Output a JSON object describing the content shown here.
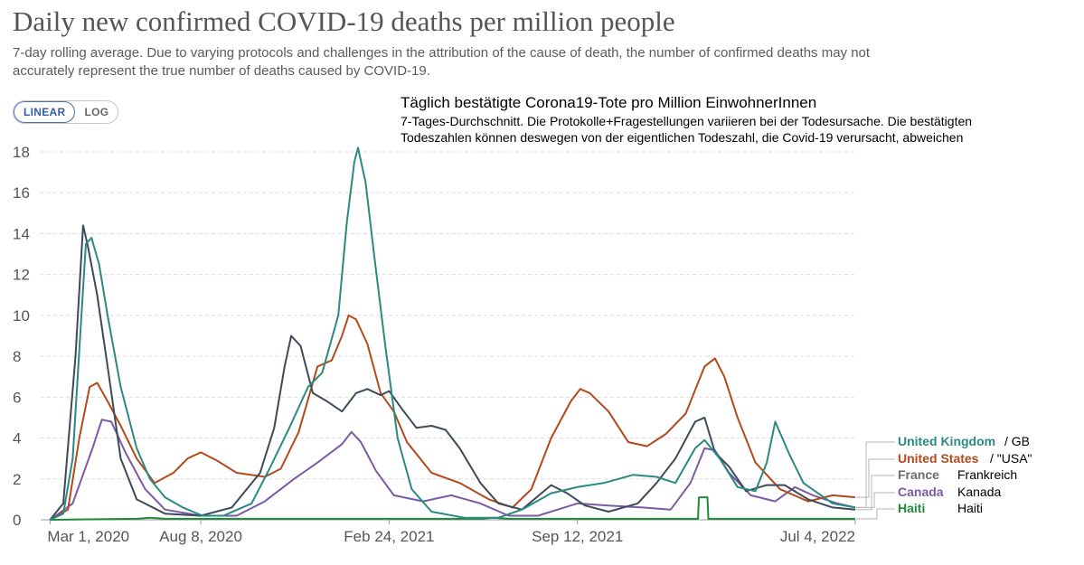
{
  "header": {
    "title": "Daily new confirmed COVID-19 deaths per million people",
    "subtitle": "7-day rolling average. Due to varying protocols and challenges in the attribution of the cause of death, the number of confirmed deaths may not accurately represent the true number of deaths caused by COVID-19."
  },
  "controls": {
    "linear_label": "LINEAR",
    "log_label": "LOG",
    "selected": "LINEAR"
  },
  "annotation": {
    "title": "Täglich bestätigte Corona19-Tote pro Million EinwohnerInnen",
    "subtitle": "7-Tages-Durchschnitt. Die Protokolle+Fragestellungen variieren bei der Todesursache. Die bestätigten Todeszahlen können deswegen von der eigentlichen Todeszahl, die Covid-19 verursacht, abweichen"
  },
  "colors": {
    "United Kingdom": "#2a8a82",
    "United States": "#b24a1c",
    "France": "#3e4a59",
    "Canada": "#7b5aa6",
    "Haiti": "#1f8a3c",
    "grid": "#dddddd",
    "axis": "#999999"
  },
  "chart_data": {
    "type": "line",
    "title": "Daily new confirmed COVID-19 deaths per million people",
    "xlabel": "",
    "ylabel": "",
    "ylim": [
      0,
      18
    ],
    "yticks": [
      0,
      2,
      4,
      6,
      8,
      10,
      12,
      14,
      16,
      18
    ],
    "grid": "horizontal dashed",
    "legend": "right",
    "xtick_labels": [
      {
        "date": "2020-03-01",
        "label": "Mar 1, 2020"
      },
      {
        "date": "2020-08-08",
        "label": "Aug 8, 2020"
      },
      {
        "date": "2021-02-24",
        "label": "Feb 24, 2021"
      },
      {
        "date": "2021-09-12",
        "label": "Sep 12, 2021"
      },
      {
        "date": "2022-07-04",
        "label": "Jul 4, 2022"
      }
    ],
    "series": [
      {
        "name": "United Kingdom",
        "label_de": "/ GB",
        "points": [
          [
            "2020-03-01",
            0
          ],
          [
            "2020-03-15",
            0.3
          ],
          [
            "2020-03-25",
            3
          ],
          [
            "2020-04-02",
            9
          ],
          [
            "2020-04-08",
            13.5
          ],
          [
            "2020-04-14",
            13.8
          ],
          [
            "2020-04-22",
            12.5
          ],
          [
            "2020-05-01",
            10
          ],
          [
            "2020-05-15",
            6.5
          ],
          [
            "2020-06-01",
            3.5
          ],
          [
            "2020-06-15",
            2
          ],
          [
            "2020-07-01",
            1.1
          ],
          [
            "2020-07-20",
            0.6
          ],
          [
            "2020-08-10",
            0.2
          ],
          [
            "2020-09-01",
            0.2
          ],
          [
            "2020-10-01",
            0.8
          ],
          [
            "2020-10-20",
            2.5
          ],
          [
            "2020-11-10",
            4.5
          ],
          [
            "2020-11-30",
            6.5
          ],
          [
            "2020-12-15",
            7.2
          ],
          [
            "2021-01-01",
            10
          ],
          [
            "2021-01-10",
            14.5
          ],
          [
            "2021-01-18",
            17.5
          ],
          [
            "2021-01-22",
            18.2
          ],
          [
            "2021-01-30",
            16.5
          ],
          [
            "2021-02-08",
            13
          ],
          [
            "2021-02-20",
            8.5
          ],
          [
            "2021-03-05",
            4
          ],
          [
            "2021-03-20",
            1.5
          ],
          [
            "2021-04-10",
            0.4
          ],
          [
            "2021-05-15",
            0.1
          ],
          [
            "2021-06-20",
            0.1
          ],
          [
            "2021-07-15",
            0.5
          ],
          [
            "2021-08-15",
            1.3
          ],
          [
            "2021-09-12",
            1.6
          ],
          [
            "2021-10-10",
            1.8
          ],
          [
            "2021-11-10",
            2.2
          ],
          [
            "2021-12-05",
            2.1
          ],
          [
            "2021-12-25",
            1.8
          ],
          [
            "2022-01-15",
            3.5
          ],
          [
            "2022-01-25",
            3.9
          ],
          [
            "2022-02-10",
            3
          ],
          [
            "2022-03-01",
            1.6
          ],
          [
            "2022-03-20",
            1.4
          ],
          [
            "2022-04-01",
            2.8
          ],
          [
            "2022-04-10",
            4.8
          ],
          [
            "2022-04-25",
            3.2
          ],
          [
            "2022-05-10",
            1.8
          ],
          [
            "2022-06-10",
            0.8
          ],
          [
            "2022-07-04",
            0.6
          ]
        ]
      },
      {
        "name": "United States",
        "label_de": "/ \"USA\"",
        "points": [
          [
            "2020-03-01",
            0
          ],
          [
            "2020-03-20",
            0.5
          ],
          [
            "2020-04-01",
            4
          ],
          [
            "2020-04-12",
            6.5
          ],
          [
            "2020-04-20",
            6.7
          ],
          [
            "2020-05-01",
            5.8
          ],
          [
            "2020-05-15",
            4.6
          ],
          [
            "2020-06-01",
            3
          ],
          [
            "2020-06-20",
            1.8
          ],
          [
            "2020-07-10",
            2.3
          ],
          [
            "2020-07-25",
            3
          ],
          [
            "2020-08-08",
            3.3
          ],
          [
            "2020-08-25",
            2.9
          ],
          [
            "2020-09-15",
            2.3
          ],
          [
            "2020-10-15",
            2.1
          ],
          [
            "2020-11-01",
            2.5
          ],
          [
            "2020-11-20",
            4.3
          ],
          [
            "2020-12-10",
            7.5
          ],
          [
            "2020-12-25",
            7.8
          ],
          [
            "2021-01-05",
            9
          ],
          [
            "2021-01-12",
            10
          ],
          [
            "2021-01-20",
            9.8
          ],
          [
            "2021-02-01",
            8.6
          ],
          [
            "2021-02-15",
            6.2
          ],
          [
            "2021-03-01",
            5.3
          ],
          [
            "2021-03-15",
            3.8
          ],
          [
            "2021-04-10",
            2.3
          ],
          [
            "2021-05-10",
            1.8
          ],
          [
            "2021-06-10",
            1
          ],
          [
            "2021-07-05",
            0.6
          ],
          [
            "2021-07-25",
            1.5
          ],
          [
            "2021-08-15",
            4
          ],
          [
            "2021-09-05",
            5.8
          ],
          [
            "2021-09-15",
            6.4
          ],
          [
            "2021-09-25",
            6.2
          ],
          [
            "2021-10-15",
            5.3
          ],
          [
            "2021-11-05",
            3.8
          ],
          [
            "2021-11-25",
            3.6
          ],
          [
            "2021-12-15",
            4.2
          ],
          [
            "2022-01-05",
            5.2
          ],
          [
            "2022-01-25",
            7.5
          ],
          [
            "2022-02-05",
            7.9
          ],
          [
            "2022-02-15",
            7
          ],
          [
            "2022-03-01",
            5
          ],
          [
            "2022-03-20",
            2.8
          ],
          [
            "2022-04-15",
            1.5
          ],
          [
            "2022-05-15",
            0.9
          ],
          [
            "2022-06-10",
            1.2
          ],
          [
            "2022-07-04",
            1.1
          ]
        ]
      },
      {
        "name": "France",
        "label_de": "Frankreich",
        "points": [
          [
            "2020-03-01",
            0
          ],
          [
            "2020-03-15",
            0.8
          ],
          [
            "2020-03-28",
            8
          ],
          [
            "2020-04-05",
            14.4
          ],
          [
            "2020-04-10",
            13.4
          ],
          [
            "2020-04-20",
            11
          ],
          [
            "2020-05-01",
            7.5
          ],
          [
            "2020-05-15",
            3
          ],
          [
            "2020-06-01",
            1
          ],
          [
            "2020-07-01",
            0.3
          ],
          [
            "2020-08-08",
            0.2
          ],
          [
            "2020-09-10",
            0.6
          ],
          [
            "2020-10-10",
            2.3
          ],
          [
            "2020-10-25",
            4.5
          ],
          [
            "2020-11-05",
            7.5
          ],
          [
            "2020-11-12",
            9
          ],
          [
            "2020-11-22",
            8.5
          ],
          [
            "2020-12-05",
            6.2
          ],
          [
            "2020-12-20",
            5.8
          ],
          [
            "2021-01-05",
            5.3
          ],
          [
            "2021-01-20",
            6.2
          ],
          [
            "2021-02-01",
            6.4
          ],
          [
            "2021-02-15",
            6.1
          ],
          [
            "2021-02-24",
            6.3
          ],
          [
            "2021-03-10",
            5.4
          ],
          [
            "2021-03-25",
            4.5
          ],
          [
            "2021-04-10",
            4.6
          ],
          [
            "2021-04-25",
            4.4
          ],
          [
            "2021-05-10",
            3.5
          ],
          [
            "2021-06-01",
            1.8
          ],
          [
            "2021-06-20",
            0.8
          ],
          [
            "2021-07-15",
            0.5
          ],
          [
            "2021-08-15",
            1.7
          ],
          [
            "2021-09-01",
            1.3
          ],
          [
            "2021-09-20",
            0.7
          ],
          [
            "2021-10-15",
            0.4
          ],
          [
            "2021-11-15",
            0.8
          ],
          [
            "2021-12-05",
            1.8
          ],
          [
            "2021-12-25",
            3
          ],
          [
            "2022-01-15",
            4.8
          ],
          [
            "2022-01-25",
            5
          ],
          [
            "2022-02-05",
            3.3
          ],
          [
            "2022-02-20",
            2.6
          ],
          [
            "2022-03-10",
            1.4
          ],
          [
            "2022-04-01",
            1.7
          ],
          [
            "2022-04-20",
            1.7
          ],
          [
            "2022-05-15",
            1
          ],
          [
            "2022-06-10",
            0.6
          ],
          [
            "2022-07-04",
            0.5
          ]
        ]
      },
      {
        "name": "Canada",
        "label_de": "Kanada",
        "points": [
          [
            "2020-03-01",
            0
          ],
          [
            "2020-03-25",
            0.8
          ],
          [
            "2020-04-15",
            3.5
          ],
          [
            "2020-04-25",
            4.9
          ],
          [
            "2020-05-05",
            4.8
          ],
          [
            "2020-05-20",
            3.3
          ],
          [
            "2020-06-10",
            1.5
          ],
          [
            "2020-07-01",
            0.5
          ],
          [
            "2020-08-08",
            0.2
          ],
          [
            "2020-09-15",
            0.2
          ],
          [
            "2020-10-15",
            0.9
          ],
          [
            "2020-11-15",
            2
          ],
          [
            "2020-12-10",
            2.8
          ],
          [
            "2021-01-05",
            3.7
          ],
          [
            "2021-01-15",
            4.3
          ],
          [
            "2021-01-25",
            3.8
          ],
          [
            "2021-02-10",
            2.4
          ],
          [
            "2021-03-01",
            1.2
          ],
          [
            "2021-04-01",
            0.9
          ],
          [
            "2021-05-01",
            1.2
          ],
          [
            "2021-06-01",
            0.8
          ],
          [
            "2021-07-01",
            0.2
          ],
          [
            "2021-08-01",
            0.2
          ],
          [
            "2021-09-12",
            0.8
          ],
          [
            "2021-10-15",
            0.7
          ],
          [
            "2021-11-20",
            0.6
          ],
          [
            "2021-12-20",
            0.5
          ],
          [
            "2022-01-10",
            1.8
          ],
          [
            "2022-01-25",
            3.5
          ],
          [
            "2022-02-05",
            3.4
          ],
          [
            "2022-02-20",
            2.3
          ],
          [
            "2022-03-15",
            1.2
          ],
          [
            "2022-04-10",
            0.9
          ],
          [
            "2022-05-01",
            1.6
          ],
          [
            "2022-05-20",
            1.2
          ],
          [
            "2022-06-15",
            0.8
          ],
          [
            "2022-07-04",
            0.6
          ]
        ]
      },
      {
        "name": "Haiti",
        "label_de": "Haiti",
        "points": [
          [
            "2020-03-01",
            0
          ],
          [
            "2020-06-01",
            0.05
          ],
          [
            "2020-06-15",
            0.1
          ],
          [
            "2020-07-01",
            0.05
          ],
          [
            "2021-06-01",
            0.05
          ],
          [
            "2021-06-15",
            0.1
          ],
          [
            "2021-07-01",
            0.05
          ],
          [
            "2022-01-01",
            0.05
          ],
          [
            "2022-01-18",
            0.05
          ],
          [
            "2022-01-19",
            1.1
          ],
          [
            "2022-01-28",
            1.1
          ],
          [
            "2022-01-29",
            0.05
          ],
          [
            "2022-07-04",
            0.05
          ]
        ]
      }
    ]
  }
}
